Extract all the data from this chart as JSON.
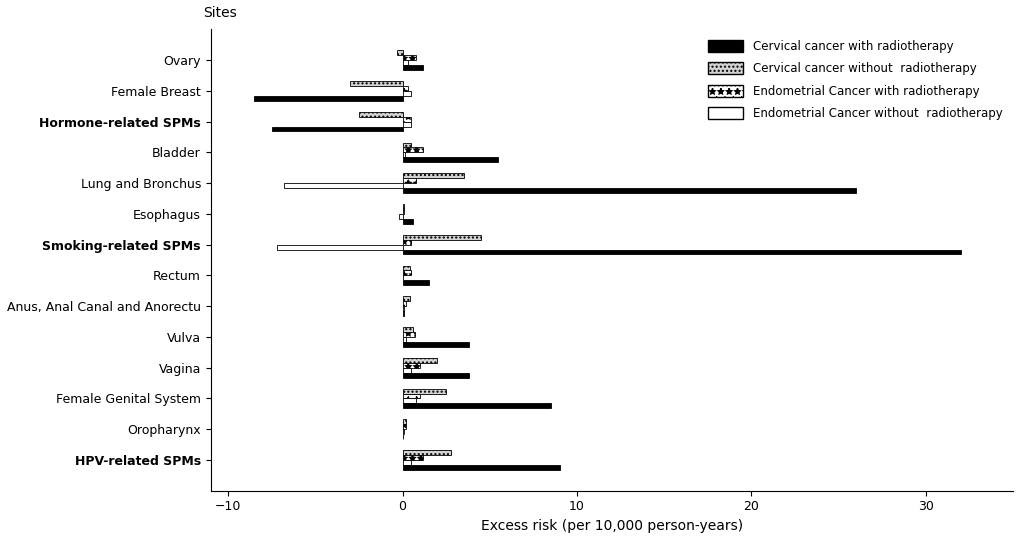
{
  "categories": [
    "Ovary",
    "Female Breast",
    "Hormone-related SPMs",
    "Bladder",
    "Lung and Bronchus",
    "Esophagus",
    "Smoking-related SPMs",
    "Rectum",
    "Anus, Anal Canal and Anorectu",
    "Vulva",
    "Vagina",
    "Female Genital System",
    "Oropharynx",
    "HPV-related SPMs"
  ],
  "bold_categories": [
    "Hormone-related SPMs",
    "Smoking-related SPMs",
    "HPV-related SPMs"
  ],
  "cervical_with_rt": [
    1.2,
    -8.5,
    -7.5,
    5.5,
    26.0,
    0.6,
    32.0,
    1.5,
    0.1,
    3.8,
    3.8,
    8.5,
    0.05,
    9.0
  ],
  "cervical_without_rt": [
    -0.3,
    -3.0,
    -2.5,
    0.5,
    3.5,
    0.1,
    4.5,
    0.4,
    0.4,
    0.6,
    2.0,
    2.5,
    0.2,
    2.8
  ],
  "endometrial_with_rt": [
    0.8,
    0.3,
    0.5,
    1.2,
    0.8,
    0.1,
    0.5,
    0.5,
    0.2,
    0.7,
    1.0,
    1.0,
    0.2,
    1.2
  ],
  "endometrial_without_rt": [
    0.3,
    0.5,
    0.5,
    0.15,
    -6.8,
    -0.2,
    -7.2,
    0.05,
    0.1,
    0.2,
    0.5,
    0.8,
    0.1,
    0.5
  ],
  "xlim": [
    -11,
    35
  ],
  "xticks": [
    -10,
    0,
    10,
    20,
    30
  ],
  "xlabel": "Excess risk (per 10,000 person-years)",
  "ytitle": "Sites",
  "bar_height": 0.16,
  "figsize": [
    10.2,
    5.4
  ],
  "dpi": 100,
  "legend_labels": [
    "Cervical cancer with radiotherapy",
    "Cervical cancer without  radiotherapy",
    "Endometrial Cancer with radiotherapy",
    "Endometrial Cancer without  radiotherapy"
  ]
}
